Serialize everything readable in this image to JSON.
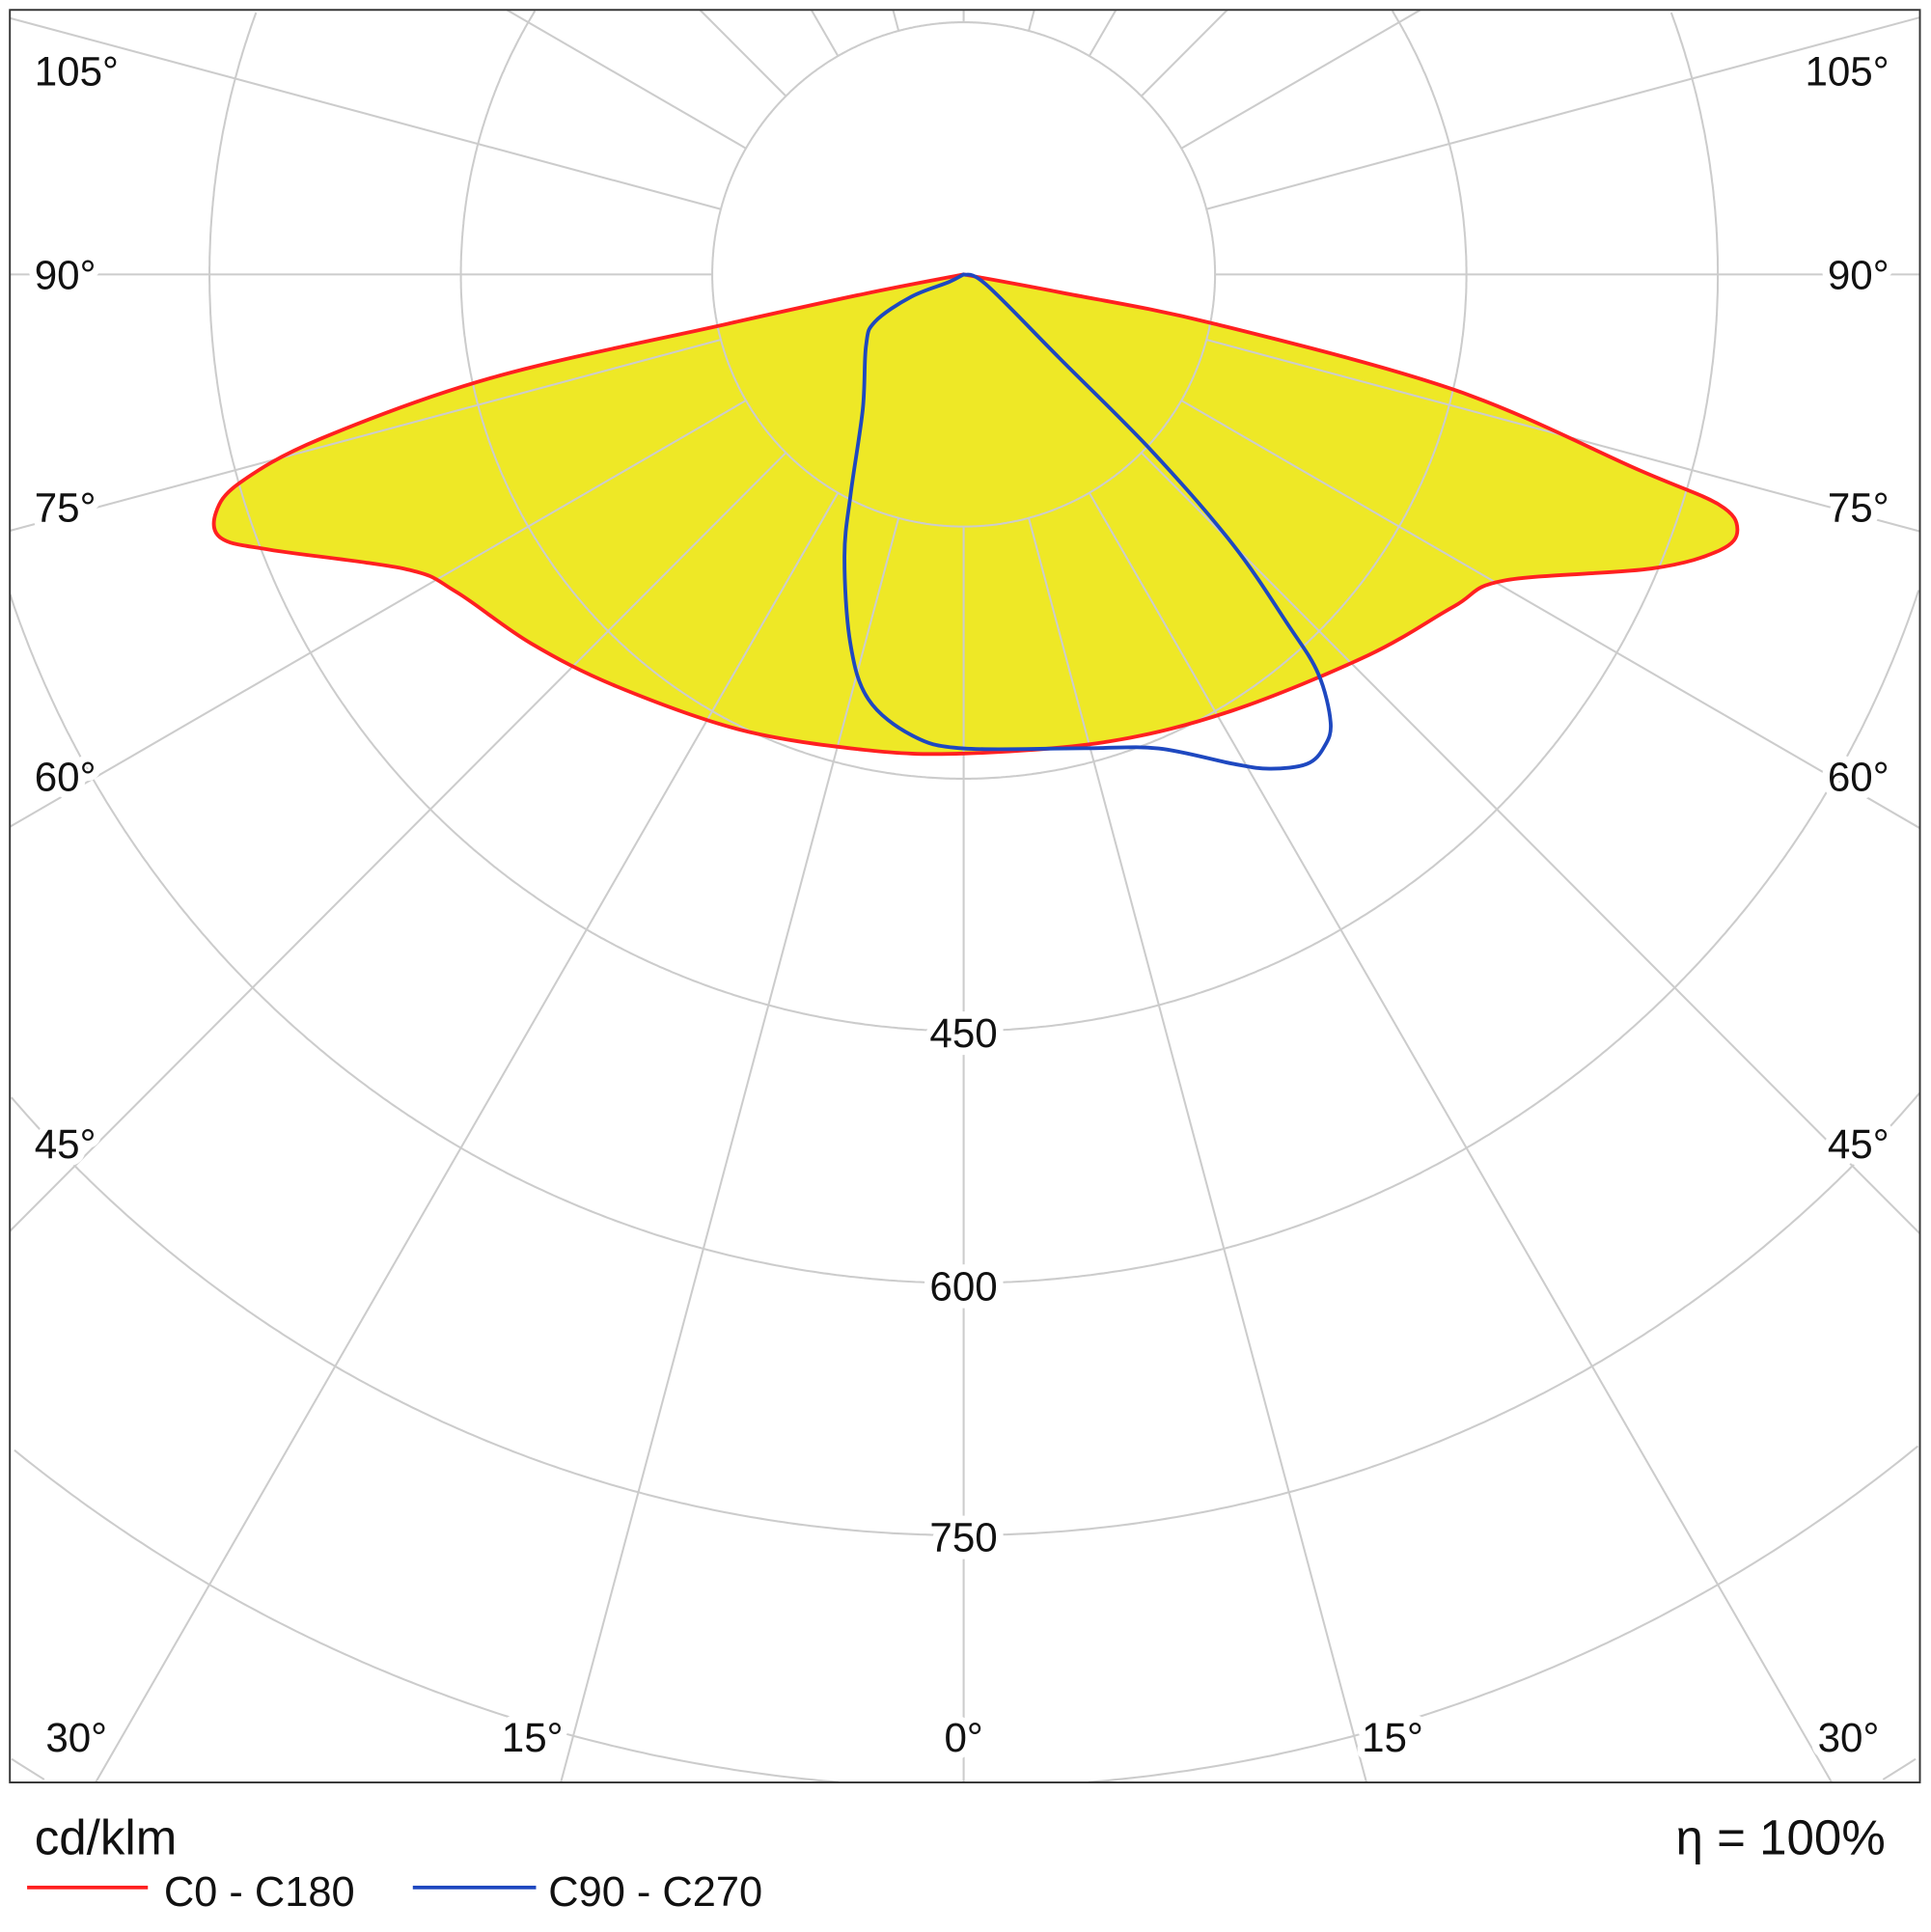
{
  "chart_data": {
    "type": "polar",
    "unit_label": "cd/klm",
    "efficiency_label": "η = 100%",
    "radial_ticks": [
      150,
      300,
      450,
      600,
      750,
      900,
      1050
    ],
    "radial_tick_labels": [
      "450",
      "600",
      "750"
    ],
    "angle_step_deg": 15,
    "angle_labels": {
      "a105": "105°",
      "a90": "90°",
      "a75": "75°",
      "a60": "60°",
      "a45": "45°",
      "a30": "30°",
      "a15": "15°",
      "a0": "0°"
    },
    "grid": true,
    "colors": {
      "fill": "#EEE826",
      "grid": "#CCCCCC",
      "c0": "#FF2020",
      "c90": "#1E48C0"
    },
    "series": [
      {
        "name": "C0 - C180",
        "color": "#FF2020",
        "filled": true,
        "points_gamma_deg_intensity": [
          [
            -90,
            0
          ],
          [
            -79,
            60
          ],
          [
            -78.2,
            144
          ],
          [
            -77.7,
            287
          ],
          [
            -75.7,
            396
          ],
          [
            -74,
            449
          ],
          [
            -72.4,
            468
          ],
          [
            -70.5,
            470
          ],
          [
            -68.4,
            445
          ],
          [
            -62.2,
            376
          ],
          [
            -58.1,
            357
          ],
          [
            -49.7,
            339
          ],
          [
            -40.3,
            321
          ],
          [
            -26.3,
            302
          ],
          [
            -12,
            289
          ],
          [
            0,
            285
          ],
          [
            17.3,
            291
          ],
          [
            31.7,
            305
          ],
          [
            46.8,
            331
          ],
          [
            56,
            353
          ],
          [
            60.5,
            370
          ],
          [
            66.9,
            446
          ],
          [
            70,
            480
          ],
          [
            71.8,
            486
          ],
          [
            73.1,
            471
          ],
          [
            73.9,
            419
          ],
          [
            76.8,
            301
          ],
          [
            78.9,
            152
          ],
          [
            79.5,
            60
          ],
          [
            90,
            0
          ]
        ]
      },
      {
        "name": "C90 - C270",
        "color": "#1E48C0",
        "filled": false,
        "points_gamma_deg_intensity": [
          [
            -90,
            0
          ],
          [
            -63,
            10
          ],
          [
            -67,
            34
          ],
          [
            -62,
            60
          ],
          [
            -54,
            72
          ],
          [
            -37,
            100
          ],
          [
            -27.3,
            147
          ],
          [
            -23,
            182
          ],
          [
            -17.2,
            229
          ],
          [
            -12.7,
            259
          ],
          [
            -6.4,
            276
          ],
          [
            0,
            282
          ],
          [
            14.4,
            291
          ],
          [
            22.4,
            305
          ],
          [
            28.8,
            332
          ],
          [
            31.8,
            346
          ],
          [
            35.1,
            356
          ],
          [
            37.4,
            354
          ],
          [
            39.4,
            345
          ],
          [
            41.7,
            318
          ],
          [
            42.9,
            284
          ],
          [
            45,
            227
          ],
          [
            46.9,
            154
          ],
          [
            48.9,
            76
          ],
          [
            66,
            14.5
          ],
          [
            90,
            0
          ]
        ]
      }
    ]
  }
}
